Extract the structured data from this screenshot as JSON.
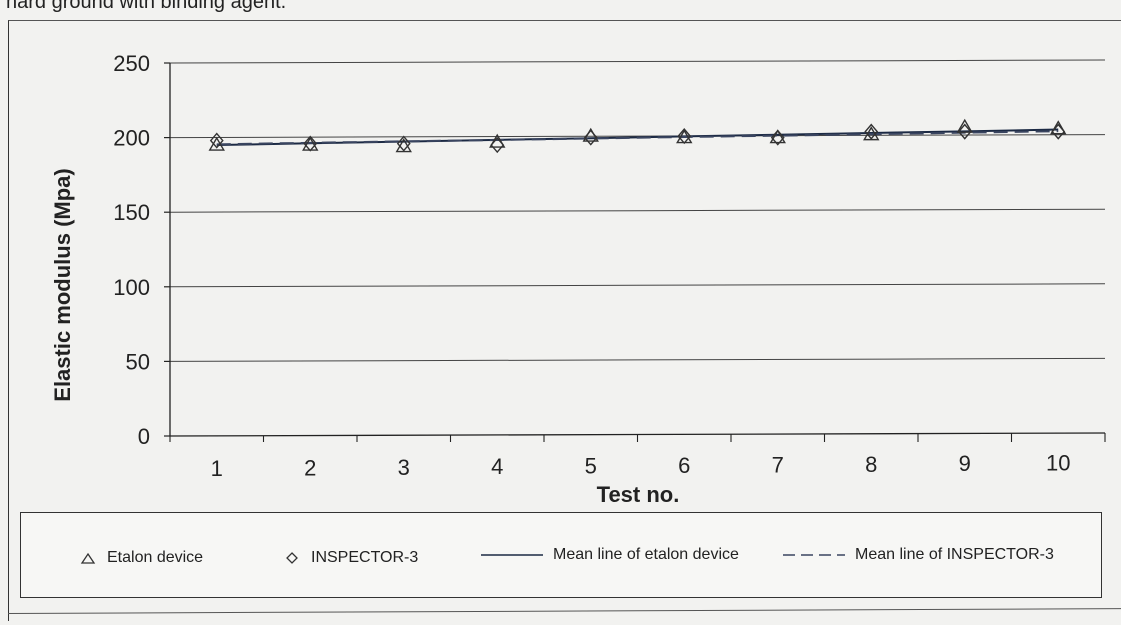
{
  "caption": {
    "fragment": "hard ground with binding agent."
  },
  "chart_data": {
    "type": "scatter",
    "title": "",
    "xlabel": "Test no.",
    "ylabel": "Elastic modulus (Mpa)",
    "x": [
      1,
      2,
      3,
      4,
      5,
      6,
      7,
      8,
      9,
      10
    ],
    "xticks": [
      "1",
      "2",
      "3",
      "4",
      "5",
      "6",
      "7",
      "8",
      "9",
      "10"
    ],
    "yticks": [
      "0",
      "50",
      "100",
      "150",
      "200",
      "250"
    ],
    "ylim": [
      0,
      250
    ],
    "xlim": [
      0.5,
      10.5
    ],
    "grid": "horizontal",
    "legend_position": "bottom",
    "series": [
      {
        "name": "Etalon device",
        "marker": "triangle",
        "values": [
          195,
          195,
          194,
          197,
          201,
          200,
          200,
          202,
          207,
          206
        ]
      },
      {
        "name": "INSPECTOR-3",
        "marker": "diamond",
        "values": [
          198,
          196,
          196,
          195,
          200,
          201,
          200,
          204,
          204,
          204
        ]
      },
      {
        "name": "Mean line of etalon device",
        "style": "solid-line",
        "values": [
          195,
          196.2,
          197.3,
          198.5,
          199.6,
          200.8,
          201.9,
          203.1,
          204.2,
          205.4
        ]
      },
      {
        "name": "Mean line of INSPECTOR-3",
        "style": "dashed-line",
        "values": [
          195.5,
          196.5,
          197.5,
          198.4,
          199.4,
          200.4,
          201.3,
          202.3,
          203.3,
          204.3
        ]
      }
    ]
  },
  "colors": {
    "axis": "#222222",
    "grid": "#444444",
    "marker": "#333333",
    "etalon_line": "#1c2a44",
    "inspector_line": "#3a4560"
  }
}
